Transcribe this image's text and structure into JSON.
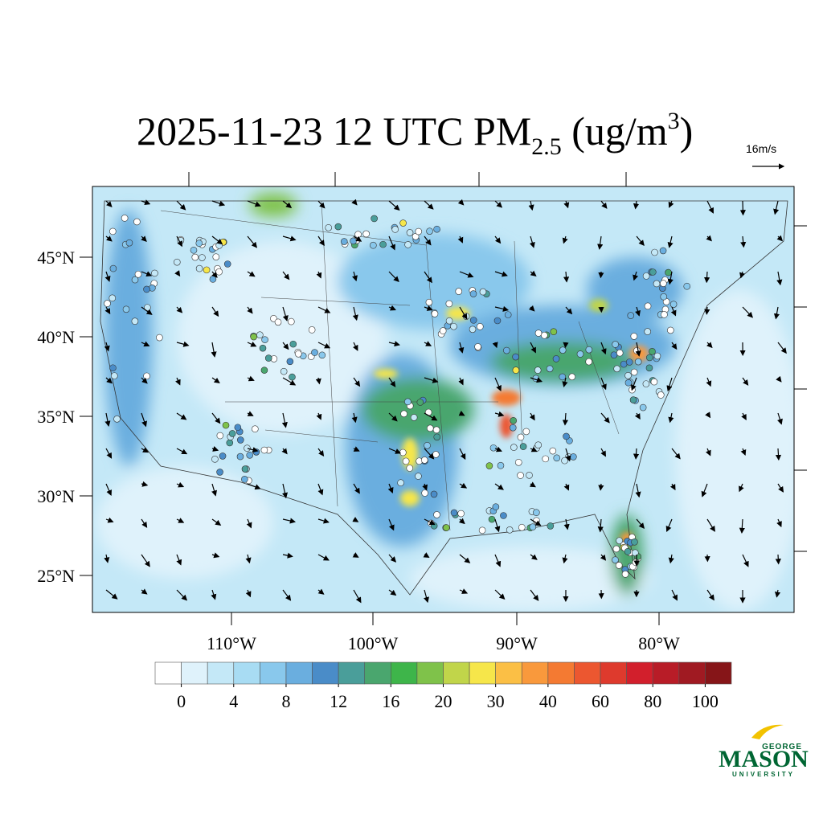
{
  "title": {
    "text": "2025-11-23 12 UTC PM",
    "subscript": "2.5",
    "unit": "(ug/m",
    "superscript": "3",
    "close": ")"
  },
  "vector_reference": "16m/s",
  "map": {
    "lat_labels": [
      "45°N",
      "40°N",
      "35°N",
      "30°N",
      "25°N"
    ],
    "lon_labels": [
      "110°W",
      "100°W",
      "90°W",
      "80°W"
    ]
  },
  "colorbar": {
    "colors": [
      "#ffffff",
      "#dff2fb",
      "#c4e8f7",
      "#a8dcf3",
      "#89c8ec",
      "#6aaedf",
      "#4a8cc8",
      "#4a9e9a",
      "#4aa66e",
      "#3eb54a",
      "#7fc24a",
      "#c1d54a",
      "#f6e64a",
      "#fbbf45",
      "#f9993c",
      "#f47a32",
      "#ec5730",
      "#de3a2d",
      "#d21f2c",
      "#b81c27",
      "#a01a22",
      "#861518"
    ],
    "ticks": [
      0,
      4,
      8,
      12,
      16,
      20,
      30,
      40,
      60,
      80,
      100
    ]
  },
  "logo": {
    "top": "GEORGE",
    "main": "MASON",
    "bottom": "UNIVERSITY"
  }
}
